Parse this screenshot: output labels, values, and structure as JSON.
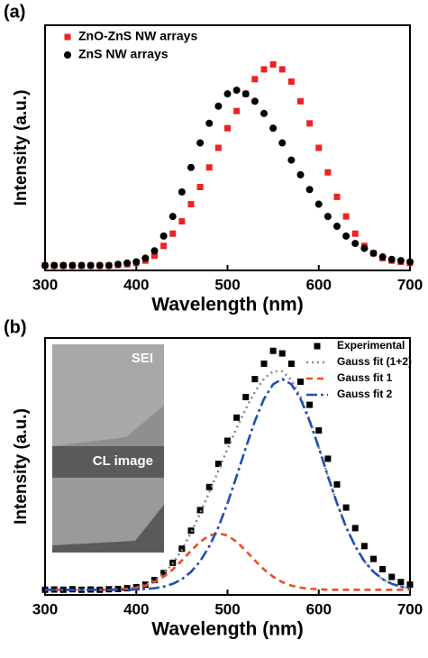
{
  "chart_data": [
    {
      "type": "line",
      "panel_label": "(a)",
      "x_label": "Wavelength (nm)",
      "y_label": "Intensity (a.u.)",
      "xlim": [
        300,
        700
      ],
      "xticks": [
        300,
        400,
        500,
        600,
        700
      ],
      "ylim": [
        0,
        1
      ],
      "legend": "top-left",
      "x": [
        300,
        310,
        320,
        330,
        340,
        350,
        360,
        370,
        380,
        390,
        400,
        410,
        420,
        430,
        440,
        450,
        460,
        470,
        480,
        490,
        500,
        510,
        520,
        530,
        540,
        550,
        560,
        570,
        580,
        590,
        600,
        610,
        620,
        630,
        640,
        650,
        660,
        670,
        680,
        690,
        700
      ],
      "series": [
        {
          "name": "ZnO-ZnS NW arrays",
          "color": "#ee2222",
          "style": "markers",
          "marker": "square",
          "values": [
            0.02,
            0.02,
            0.02,
            0.02,
            0.02,
            0.02,
            0.02,
            0.02,
            0.022,
            0.025,
            0.03,
            0.04,
            0.06,
            0.1,
            0.15,
            0.2,
            0.27,
            0.34,
            0.42,
            0.5,
            0.58,
            0.65,
            0.72,
            0.78,
            0.82,
            0.84,
            0.82,
            0.77,
            0.69,
            0.6,
            0.5,
            0.4,
            0.3,
            0.22,
            0.15,
            0.1,
            0.07,
            0.05,
            0.04,
            0.035,
            0.03
          ]
        },
        {
          "name": "ZnS NW arrays",
          "color": "#000000",
          "style": "markers",
          "marker": "circle",
          "values": [
            0.02,
            0.02,
            0.02,
            0.02,
            0.02,
            0.02,
            0.02,
            0.02,
            0.025,
            0.03,
            0.035,
            0.05,
            0.08,
            0.14,
            0.22,
            0.32,
            0.42,
            0.52,
            0.6,
            0.67,
            0.72,
            0.735,
            0.72,
            0.69,
            0.64,
            0.58,
            0.52,
            0.45,
            0.39,
            0.33,
            0.27,
            0.22,
            0.18,
            0.14,
            0.11,
            0.09,
            0.07,
            0.055,
            0.045,
            0.04,
            0.035
          ]
        }
      ]
    },
    {
      "type": "line",
      "panel_label": "(b)",
      "x_label": "Wavelength (nm)",
      "y_label": "Intensity (a.u.)",
      "xlim": [
        300,
        700
      ],
      "xticks": [
        300,
        400,
        500,
        600,
        700
      ],
      "ylim": [
        0,
        1
      ],
      "legend": "top-right",
      "insets": [
        "SEI",
        "CL image"
      ],
      "x": [
        300,
        310,
        320,
        330,
        340,
        350,
        360,
        370,
        380,
        390,
        400,
        410,
        420,
        430,
        440,
        450,
        460,
        470,
        480,
        490,
        500,
        510,
        520,
        530,
        540,
        550,
        560,
        570,
        580,
        590,
        600,
        610,
        620,
        630,
        640,
        650,
        660,
        670,
        680,
        690,
        700
      ],
      "series": [
        {
          "name": "Experimental",
          "color": "#000000",
          "style": "markers",
          "marker": "square",
          "values": [
            0.02,
            0.021,
            0.02,
            0.022,
            0.02,
            0.021,
            0.02,
            0.022,
            0.023,
            0.026,
            0.03,
            0.04,
            0.058,
            0.085,
            0.125,
            0.18,
            0.25,
            0.33,
            0.42,
            0.51,
            0.6,
            0.69,
            0.77,
            0.84,
            0.9,
            0.95,
            0.94,
            0.9,
            0.83,
            0.74,
            0.64,
            0.53,
            0.43,
            0.34,
            0.26,
            0.19,
            0.14,
            0.1,
            0.07,
            0.05,
            0.04
          ]
        },
        {
          "name": "Gauss fit (1+2)",
          "color": "#888888",
          "style": "line",
          "dash": "2 4",
          "values": [
            0.02,
            0.02,
            0.02,
            0.02,
            0.02,
            0.02,
            0.02,
            0.02,
            0.022,
            0.024,
            0.029,
            0.039,
            0.056,
            0.083,
            0.122,
            0.175,
            0.242,
            0.318,
            0.4,
            0.484,
            0.568,
            0.649,
            0.725,
            0.791,
            0.842,
            0.871,
            0.87,
            0.836,
            0.771,
            0.681,
            0.575,
            0.462,
            0.357,
            0.264,
            0.189,
            0.131,
            0.09,
            0.061,
            0.043,
            0.032,
            0.026
          ]
        },
        {
          "name": "Gauss fit 1",
          "color": "#f04a24",
          "style": "line",
          "dash": "7 5",
          "values": [
            0.02,
            0.02,
            0.02,
            0.02,
            0.02,
            0.02,
            0.02,
            0.02,
            0.022,
            0.024,
            0.028,
            0.036,
            0.05,
            0.071,
            0.099,
            0.134,
            0.172,
            0.207,
            0.231,
            0.24,
            0.231,
            0.207,
            0.172,
            0.134,
            0.099,
            0.071,
            0.05,
            0.036,
            0.028,
            0.024,
            0.022,
            0.02,
            0.02,
            0.02,
            0.02,
            0.02,
            0.02,
            0.02,
            0.02,
            0.02,
            0.02
          ]
        },
        {
          "name": "Gauss fit 2",
          "color": "#1f4fb4",
          "style": "line",
          "dash": "12 4 3 4",
          "values": [
            0.02,
            0.02,
            0.02,
            0.02,
            0.02,
            0.02,
            0.02,
            0.02,
            0.02,
            0.02,
            0.021,
            0.023,
            0.026,
            0.032,
            0.043,
            0.061,
            0.09,
            0.131,
            0.189,
            0.264,
            0.357,
            0.462,
            0.573,
            0.677,
            0.763,
            0.82,
            0.84,
            0.82,
            0.763,
            0.677,
            0.573,
            0.462,
            0.357,
            0.264,
            0.189,
            0.131,
            0.09,
            0.061,
            0.043,
            0.032,
            0.026
          ]
        }
      ]
    }
  ]
}
